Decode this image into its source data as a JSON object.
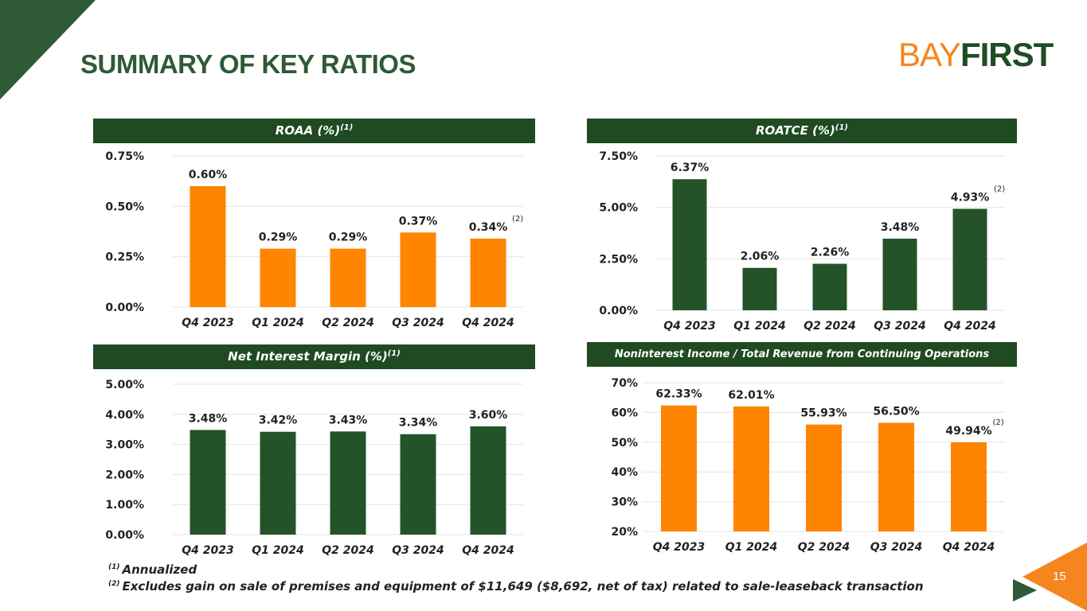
{
  "title": "SUMMARY OF KEY RATIOS",
  "logo": {
    "part1": "BAY",
    "part2": "FIRST"
  },
  "page_number": "15",
  "colors": {
    "dark_green": "#1f4a22",
    "bar_green": "#24532a",
    "orange": "#ff8400",
    "title_green": "#2e5a35",
    "brand_orange": "#f5861f"
  },
  "footnotes": {
    "note1_marker": "(1)",
    "note1_text": "Annualized",
    "note2_marker": "(2)",
    "note2_text": "Excludes gain on sale of premises and equipment of $11,649 ($8,692, net of tax) related to sale-leaseback transaction"
  },
  "panels": {
    "roaa": {
      "title": "ROAA (%)",
      "sup": "(1)"
    },
    "roatce": {
      "title": "ROATCE (%)",
      "sup": "(1)"
    },
    "nim": {
      "title": "Net Interest Margin (%)",
      "sup": "(1)"
    },
    "nonint": {
      "title": "Noninterest Income / Total Revenue from Continuing Operations",
      "sup": ""
    }
  },
  "chart_data": [
    {
      "id": "roaa",
      "type": "bar",
      "title": "ROAA (%)",
      "categories": [
        "Q4 2023",
        "Q1 2024",
        "Q2 2024",
        "Q3 2024",
        "Q4 2024"
      ],
      "values": [
        0.6,
        0.29,
        0.29,
        0.37,
        0.34
      ],
      "labels": [
        "0.60%",
        "0.29%",
        "0.29%",
        "0.37%",
        "0.34%"
      ],
      "yticks": [
        0,
        0.25,
        0.5,
        0.75
      ],
      "ytick_labels": [
        "0.00%",
        "0.25%",
        "0.50%",
        "0.75%"
      ],
      "ylim": [
        0,
        0.75
      ],
      "color": "#ff8400",
      "footnote_marks": [
        "",
        "",
        "",
        "",
        "(2)"
      ]
    },
    {
      "id": "roatce",
      "type": "bar",
      "title": "ROATCE (%)",
      "categories": [
        "Q4 2023",
        "Q1 2024",
        "Q2 2024",
        "Q3 2024",
        "Q4 2024"
      ],
      "values": [
        6.37,
        2.06,
        2.26,
        3.48,
        4.93
      ],
      "labels": [
        "6.37%",
        "2.06%",
        "2.26%",
        "3.48%",
        "4.93%"
      ],
      "yticks": [
        0,
        2.5,
        5,
        7.5
      ],
      "ytick_labels": [
        "0.00%",
        "2.50%",
        "5.00%",
        "7.50%"
      ],
      "ylim": [
        0,
        7.5
      ],
      "color": "#24532a",
      "footnote_marks": [
        "",
        "",
        "",
        "",
        "(2)"
      ]
    },
    {
      "id": "nim",
      "type": "bar",
      "title": "Net Interest Margin (%)",
      "categories": [
        "Q4 2023",
        "Q1 2024",
        "Q2 2024",
        "Q3 2024",
        "Q4 2024"
      ],
      "values": [
        3.48,
        3.42,
        3.43,
        3.34,
        3.6
      ],
      "labels": [
        "3.48%",
        "3.42%",
        "3.43%",
        "3.34%",
        "3.60%"
      ],
      "yticks": [
        0,
        1,
        2,
        3,
        4,
        5
      ],
      "ytick_labels": [
        "0.00%",
        "1.00%",
        "2.00%",
        "3.00%",
        "4.00%",
        "5.00%"
      ],
      "ylim": [
        0,
        5
      ],
      "color": "#24532a",
      "footnote_marks": [
        "",
        "",
        "",
        "",
        ""
      ]
    },
    {
      "id": "nonint",
      "type": "bar",
      "title": "Noninterest Income / Total Revenue from Continuing Operations",
      "categories": [
        "Q4 2023",
        "Q1 2024",
        "Q2 2024",
        "Q3 2024",
        "Q4 2024"
      ],
      "values": [
        62.33,
        62.01,
        55.93,
        56.5,
        49.94
      ],
      "labels": [
        "62.33%",
        "62.01%",
        "55.93%",
        "56.50%",
        "49.94%"
      ],
      "yticks": [
        20,
        30,
        40,
        50,
        60,
        70
      ],
      "ytick_labels": [
        "20%",
        "30%",
        "40%",
        "50%",
        "60%",
        "70%"
      ],
      "ylim": [
        20,
        70
      ],
      "color": "#ff8400",
      "footnote_marks": [
        "",
        "",
        "",
        "",
        "(2)"
      ]
    }
  ]
}
